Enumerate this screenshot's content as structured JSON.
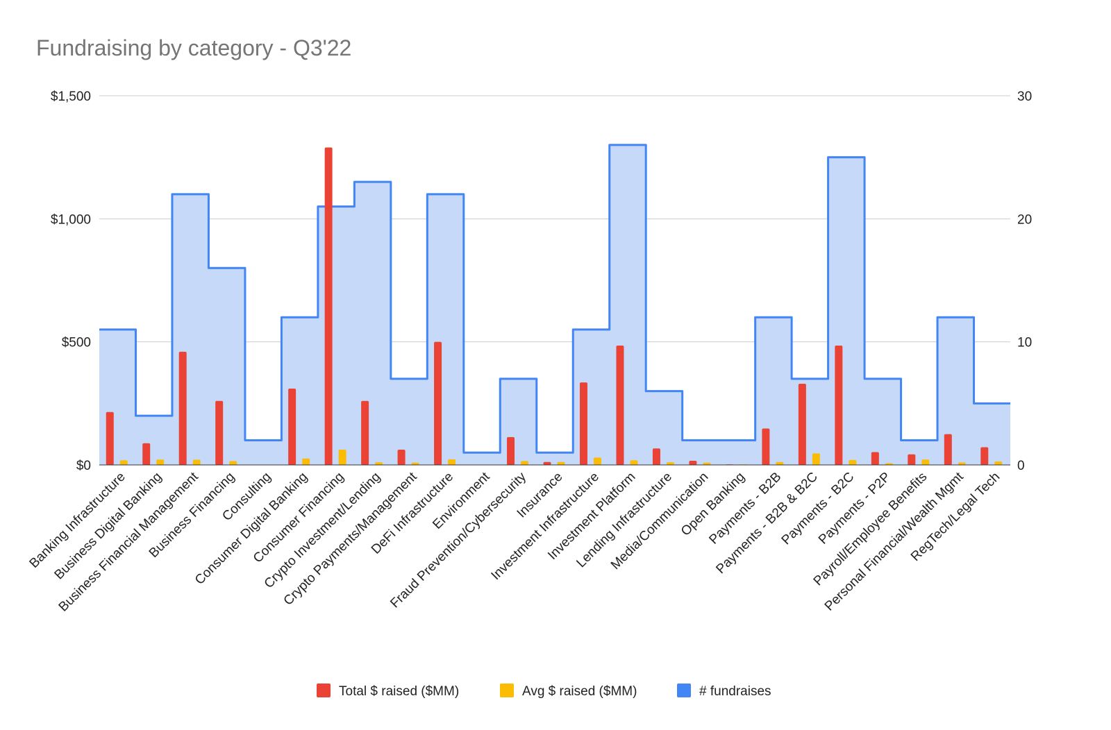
{
  "chart_data": {
    "type": "bar",
    "title": "Fundraising by category - Q3'22",
    "categories": [
      "Banking Infrastructure",
      "Business Digital Banking",
      "Business Financial Management",
      "Business Financing",
      "Consulting",
      "Consumer Digital Banking",
      "Consumer Financing",
      "Crypto Investment/Lending",
      "Crypto Payments/Management",
      "DeFi Infrastructure",
      "Environment",
      "Fraud Prevention/Cybersecurity",
      "Insurance",
      "Investment Infrastructure",
      "Investment Platform",
      "Lending Infrastructure",
      "Media/Communication",
      "Open Banking",
      "Payments - B2B",
      "Payments - B2B & B2C",
      "Payments - B2C",
      "Payments - P2P",
      "Payroll/Employee Benefits",
      "Personal Financial/Wealth Mgmt",
      "RegTech/Legal Tech"
    ],
    "series": [
      {
        "name": "Total $ raised ($MM)",
        "type": "bar",
        "axis": "left",
        "color": "#ea4335",
        "values": [
          215,
          88,
          460,
          260,
          0,
          310,
          1290,
          260,
          62,
          500,
          0,
          113,
          12,
          335,
          485,
          67,
          17,
          2,
          148,
          330,
          485,
          52,
          43,
          125,
          72
        ]
      },
      {
        "name": "Avg $ raised ($MM)",
        "type": "bar",
        "axis": "left",
        "color": "#fbbc04",
        "values": [
          19,
          22,
          21,
          16,
          0,
          26,
          62,
          11,
          9,
          23,
          0,
          16,
          12,
          30,
          19,
          11,
          9,
          2,
          12,
          47,
          20,
          7,
          22,
          10,
          14
        ]
      },
      {
        "name": "# fundraises",
        "type": "stepped-area",
        "axis": "right",
        "color": "#4285f4",
        "values": [
          11,
          4,
          22,
          16,
          2,
          12,
          21,
          23,
          7,
          22,
          1,
          7,
          1,
          11,
          26,
          6,
          2,
          2,
          12,
          7,
          25,
          7,
          2,
          12,
          5
        ]
      }
    ],
    "y_left": {
      "min": 0,
      "max": 1500,
      "ticks": [
        0,
        500,
        1000,
        1500
      ],
      "tick_labels": [
        "$0",
        "$500",
        "$1,000",
        "$1,500"
      ]
    },
    "y_right": {
      "min": 0,
      "max": 30,
      "ticks": [
        0,
        10,
        20,
        30
      ],
      "tick_labels": [
        "0",
        "10",
        "20",
        "30"
      ]
    },
    "xlabel": "",
    "ylabel": "",
    "grid": true,
    "legend_position": "bottom"
  }
}
